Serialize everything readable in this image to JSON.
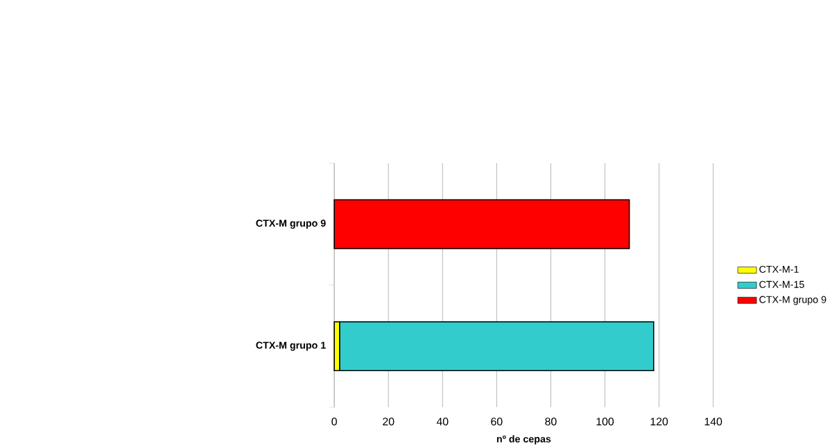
{
  "chart_data": {
    "type": "bar",
    "orientation": "horizontal",
    "stacked": true,
    "xlabel": "nº de cepas",
    "categories": [
      "CTX-M grupo 9",
      "CTX-M grupo 1"
    ],
    "series": [
      {
        "name": "CTX-M-1",
        "color": "#ffff00",
        "values": [
          null,
          2
        ]
      },
      {
        "name": "CTX-M-15",
        "color": "#33cccc",
        "values": [
          null,
          116
        ]
      },
      {
        "name": "CTX-M grupo 9",
        "color": "#ff0000",
        "values": [
          109,
          null
        ]
      }
    ],
    "xlim": [
      0,
      140
    ],
    "xticks": [
      0,
      20,
      40,
      60,
      80,
      100,
      120,
      140
    ],
    "grid": "x",
    "legend": "right"
  }
}
